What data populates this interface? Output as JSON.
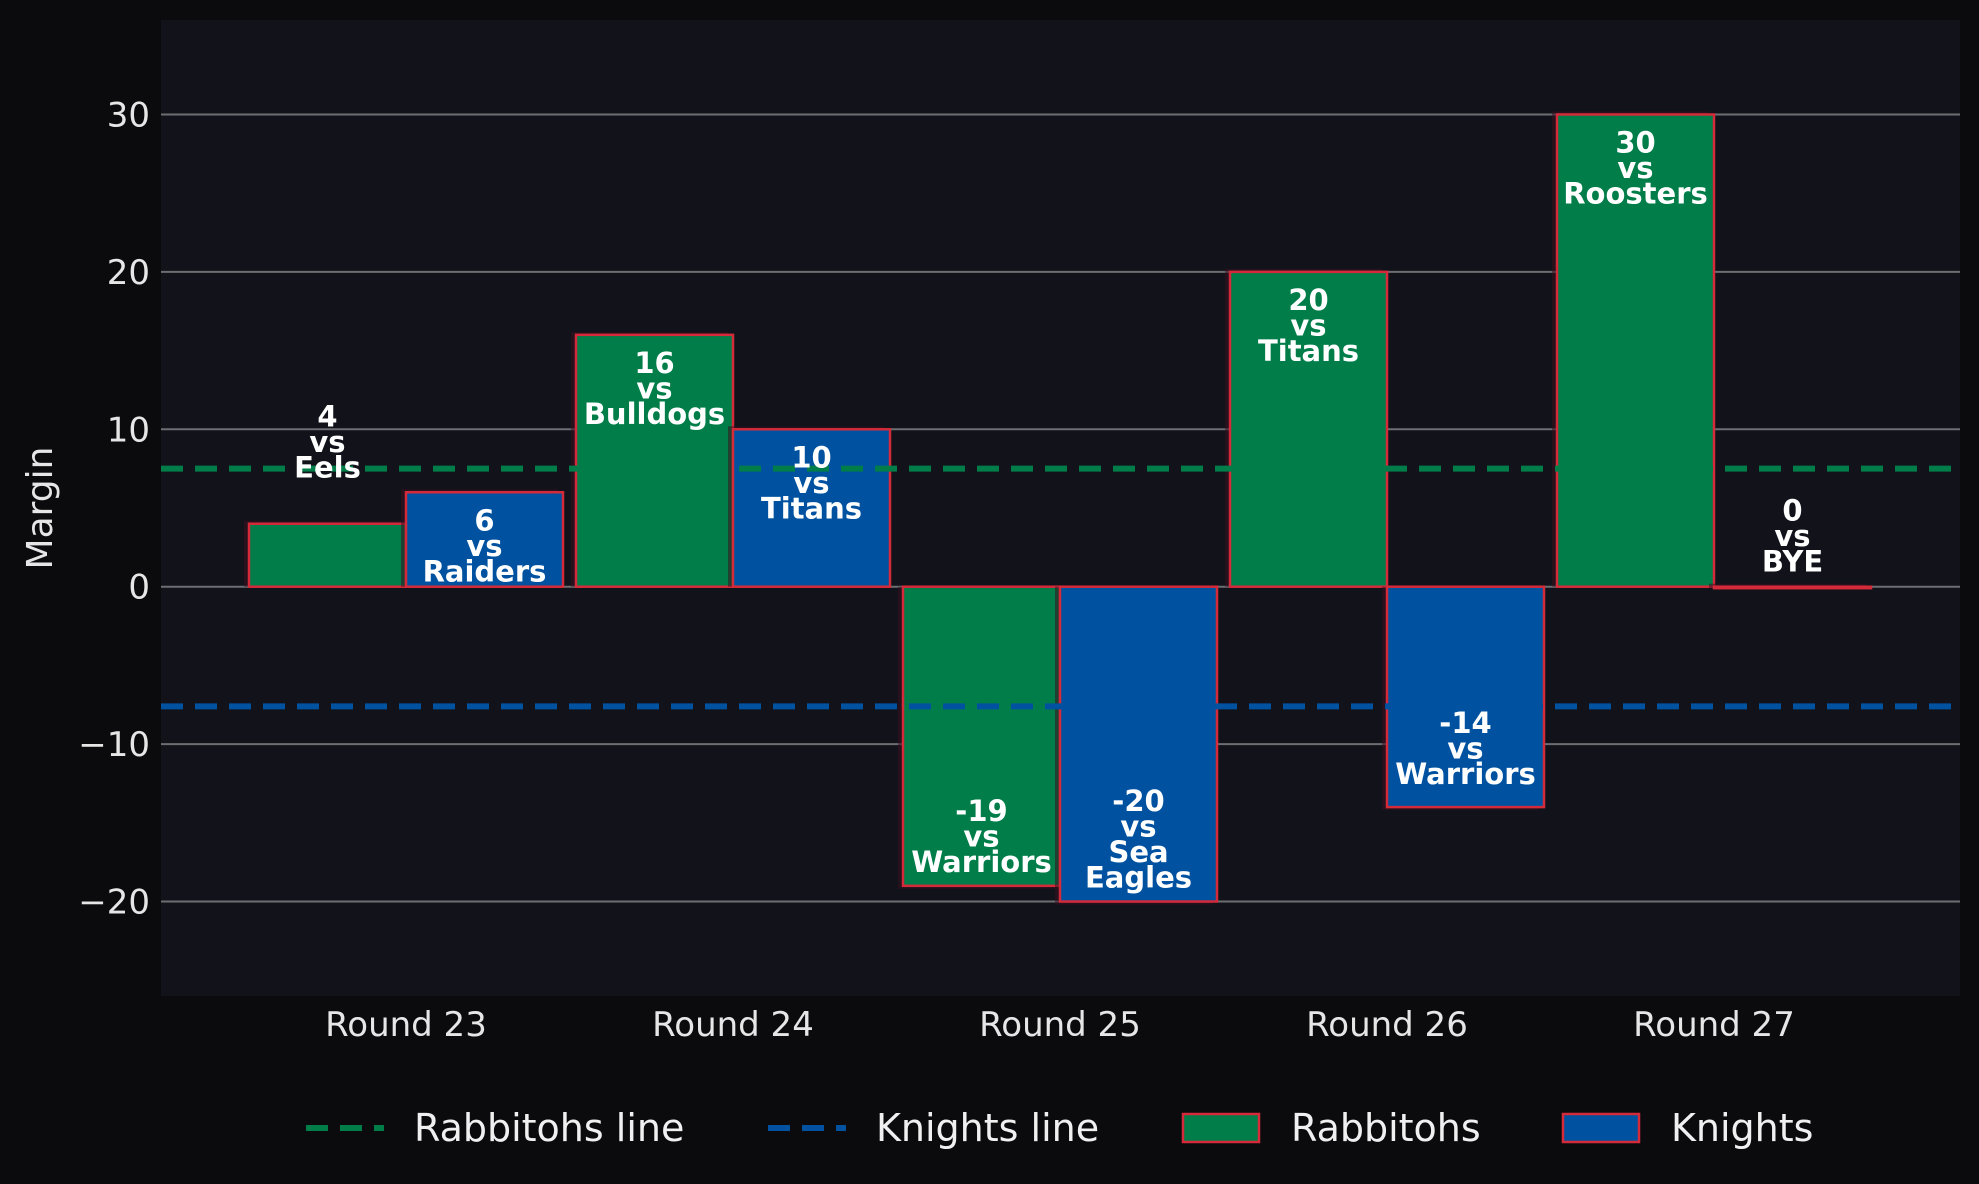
{
  "chart_data": {
    "type": "bar",
    "categories": [
      "Round 23",
      "Round 24",
      "Round 25",
      "Round 26",
      "Round 27"
    ],
    "ylabel": "Margin",
    "xlabel": "",
    "title": "",
    "ylim": [
      -26,
      36
    ],
    "yticks": [
      -20,
      -10,
      0,
      10,
      20,
      30
    ],
    "ytick_labels": [
      "−20",
      "−10",
      "0",
      "10",
      "20",
      "30"
    ],
    "grid": "horizontal",
    "legend_position": "bottom",
    "series": [
      {
        "name": "Rabbitohs",
        "color": "#007d48",
        "values": [
          4,
          16,
          -19,
          20,
          30
        ],
        "labels": [
          [
            "4",
            "vs",
            "Eels"
          ],
          [
            "16",
            "vs",
            "Bulldogs"
          ],
          [
            "-19",
            "vs",
            "Warriors"
          ],
          [
            "20",
            "vs",
            "Titans"
          ],
          [
            "30",
            "vs",
            "Roosters"
          ]
        ]
      },
      {
        "name": "Knights",
        "color": "#0052a0",
        "values": [
          6,
          10,
          -20,
          -14,
          0
        ],
        "labels": [
          [
            "6",
            "vs",
            "Raiders"
          ],
          [
            "10",
            "vs",
            "Titans"
          ],
          [
            "-20",
            "vs",
            "Sea",
            "Eagles"
          ],
          [
            "-14",
            "vs",
            "Warriors"
          ],
          [
            "0",
            "vs",
            "BYE"
          ]
        ]
      }
    ],
    "reference_lines": [
      {
        "name": "Rabbitohs line",
        "value": 7.5,
        "color": "#007d48"
      },
      {
        "name": "Knights line",
        "value": -7.6,
        "color": "#0052a0"
      }
    ],
    "bar_edge_color": "#d42a3a"
  }
}
